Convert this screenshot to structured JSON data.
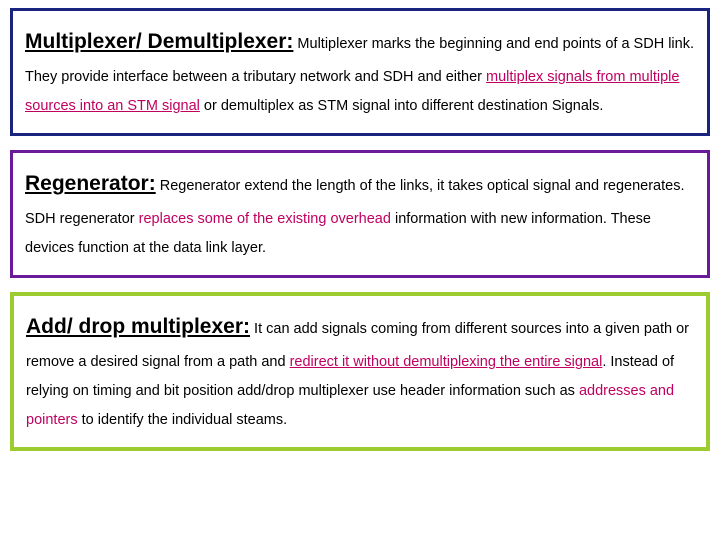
{
  "box1": {
    "title": "Multiplexer/ Demultiplexer:",
    "t1": " Multiplexer marks the beginning and end points of a SDH link. They provide interface between a tributary network and SDH and either ",
    "hl1": "multiplex signals from multiple sources into an STM signal",
    "t2": " or demultiplex as STM signal into different destination Signals."
  },
  "box2": {
    "title": "Regenerator:",
    "t1": "  Regenerator extend the length of the links, it takes optical signal and regenerates. SDH regenerator ",
    "hl1": "replaces some of the existing overhead",
    "t2": " information with new information. These devices function at the data link layer."
  },
  "box3": {
    "title": "Add/ drop multiplexer:",
    "t1": " It can add signals coming from different sources into a given path or remove a desired signal from a path and ",
    "hl1": "redirect it without demultiplexing the entire signal",
    "t2": ". Instead of relying on timing and bit position add/drop multiplexer use header information such as ",
    "hl2": "addresses and pointers",
    "t3": " to identify the individual steams."
  },
  "colors": {
    "border1": "#1a237e",
    "border2": "#6a1b9a",
    "border3": "#9ccc30",
    "highlight": "#c00060",
    "text": "#000000",
    "background": "#ffffff"
  }
}
